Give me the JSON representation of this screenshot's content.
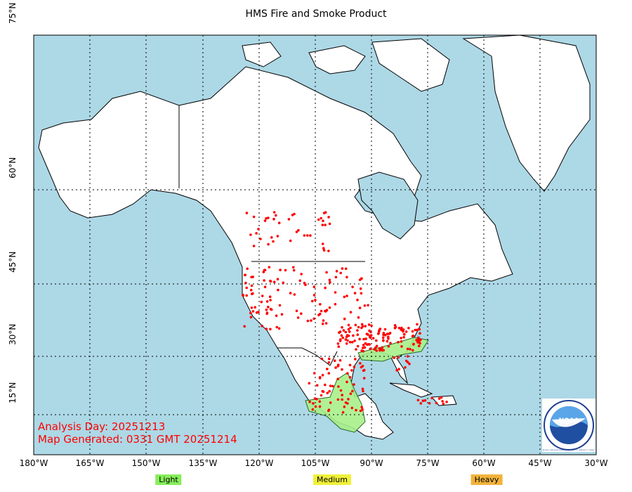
{
  "title": "HMS Fire and Smoke Product",
  "axes": {
    "lon_labels": [
      "180°W",
      "165°W",
      "150°W",
      "135°W",
      "120°W",
      "105°W",
      "90°W",
      "75°W",
      "60°W",
      "45°W",
      "30°W"
    ],
    "lat_labels": [
      "75°N",
      "60°N",
      "45°N",
      "30°N",
      "15°N"
    ]
  },
  "info": {
    "analysis_day": "Analysis Day: 20251213",
    "map_generated": "Map Generated: 0331 GMT 20251214"
  },
  "legend": [
    {
      "label": "Light",
      "color": "#86ee5a"
    },
    {
      "label": "Medium",
      "color": "#f0f03a"
    },
    {
      "label": "Heavy",
      "color": "#f2b33c"
    }
  ],
  "colors": {
    "ocean": "#add8e6",
    "land": "#ffffff",
    "fire": "#ff0000",
    "smoke_light": "#a8f08a"
  },
  "logo": {
    "text": "NOAA",
    "ring": "NATIONAL OCEANIC AND ATMOSPHERIC ADMINISTRATION · U.S. DEPARTMENT OF COMMERCE"
  }
}
